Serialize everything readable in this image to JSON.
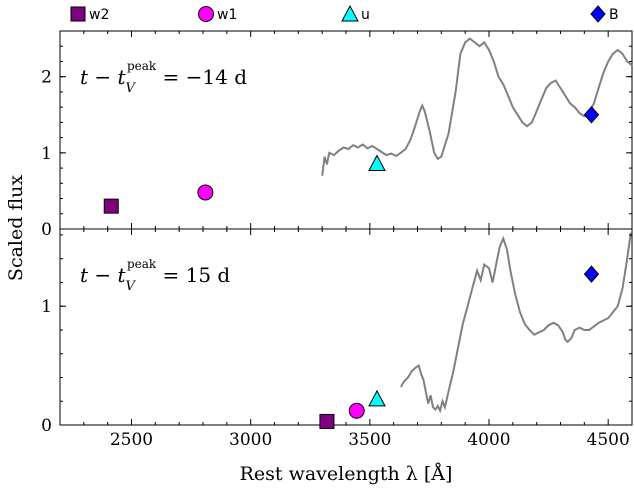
{
  "chart_data": {
    "type": "line",
    "xlabel": "Rest wavelength λ [Å]",
    "ylabel": "Scaled flux",
    "xlim": [
      2200,
      4600
    ],
    "x_ticks": [
      2500,
      3000,
      3500,
      4000,
      4500
    ],
    "legend_placement": "top, outside plot",
    "legend": [
      {
        "name": "w2",
        "marker": "square",
        "color": "#800080"
      },
      {
        "name": "w1",
        "marker": "circle",
        "color": "#ff00ff"
      },
      {
        "name": "u",
        "marker": "triangle",
        "color": "#00ffff"
      },
      {
        "name": "B",
        "marker": "diamond",
        "color": "#0000ff"
      }
    ],
    "spectrum_color": "#808080",
    "panels": [
      {
        "id": "top",
        "label_prefix": "t − t",
        "label_sub": "V",
        "label_sup": "peak",
        "label_value": " = −14 d",
        "ylim": [
          0,
          2.6
        ],
        "y_ticks": [
          0,
          1,
          2
        ],
        "photometry": [
          {
            "band": "w2",
            "x": 2415,
            "y": 0.3
          },
          {
            "band": "w1",
            "x": 2810,
            "y": 0.48
          },
          {
            "band": "u",
            "x": 3530,
            "y": 0.86
          },
          {
            "band": "B",
            "x": 4430,
            "y": 1.5
          }
        ],
        "spectrum": [
          [
            3300,
            0.7
          ],
          [
            3310,
            0.95
          ],
          [
            3320,
            0.85
          ],
          [
            3330,
            1.0
          ],
          [
            3350,
            0.97
          ],
          [
            3370,
            1.03
          ],
          [
            3390,
            1.07
          ],
          [
            3410,
            1.05
          ],
          [
            3430,
            1.1
          ],
          [
            3450,
            1.07
          ],
          [
            3470,
            1.11
          ],
          [
            3490,
            1.06
          ],
          [
            3510,
            1.09
          ],
          [
            3530,
            1.05
          ],
          [
            3550,
            1.01
          ],
          [
            3570,
            0.97
          ],
          [
            3590,
            0.99
          ],
          [
            3610,
            0.96
          ],
          [
            3630,
            1.0
          ],
          [
            3650,
            1.05
          ],
          [
            3670,
            1.17
          ],
          [
            3690,
            1.35
          ],
          [
            3710,
            1.55
          ],
          [
            3720,
            1.62
          ],
          [
            3730,
            1.55
          ],
          [
            3750,
            1.3
          ],
          [
            3770,
            1.0
          ],
          [
            3785,
            0.92
          ],
          [
            3800,
            0.95
          ],
          [
            3830,
            1.25
          ],
          [
            3860,
            1.8
          ],
          [
            3880,
            2.3
          ],
          [
            3900,
            2.45
          ],
          [
            3920,
            2.5
          ],
          [
            3940,
            2.45
          ],
          [
            3960,
            2.4
          ],
          [
            3980,
            2.45
          ],
          [
            4000,
            2.35
          ],
          [
            4020,
            2.2
          ],
          [
            4040,
            2.0
          ],
          [
            4060,
            1.9
          ],
          [
            4080,
            1.75
          ],
          [
            4100,
            1.6
          ],
          [
            4120,
            1.5
          ],
          [
            4140,
            1.4
          ],
          [
            4160,
            1.35
          ],
          [
            4180,
            1.4
          ],
          [
            4200,
            1.55
          ],
          [
            4220,
            1.7
          ],
          [
            4240,
            1.85
          ],
          [
            4260,
            1.92
          ],
          [
            4280,
            1.95
          ],
          [
            4300,
            1.85
          ],
          [
            4320,
            1.75
          ],
          [
            4340,
            1.65
          ],
          [
            4360,
            1.6
          ],
          [
            4380,
            1.52
          ],
          [
            4400,
            1.48
          ],
          [
            4420,
            1.52
          ],
          [
            4440,
            1.65
          ],
          [
            4460,
            1.85
          ],
          [
            4480,
            2.05
          ],
          [
            4500,
            2.2
          ],
          [
            4520,
            2.3
          ],
          [
            4540,
            2.35
          ],
          [
            4560,
            2.3
          ],
          [
            4580,
            2.2
          ],
          [
            4600,
            2.15
          ]
        ]
      },
      {
        "id": "bottom",
        "label_prefix": "t − t",
        "label_sub": "V",
        "label_sup": "peak",
        "label_value": " = 15 d",
        "ylim": [
          0,
          1.65
        ],
        "y_ticks": [
          0,
          1
        ],
        "photometry": [
          {
            "band": "w2",
            "x": 3320,
            "y": 0.03
          },
          {
            "band": "w1",
            "x": 3445,
            "y": 0.12
          },
          {
            "band": "u",
            "x": 3530,
            "y": 0.22
          },
          {
            "band": "B",
            "x": 4430,
            "y": 1.27
          }
        ],
        "spectrum": [
          [
            3630,
            0.32
          ],
          [
            3645,
            0.37
          ],
          [
            3660,
            0.4
          ],
          [
            3675,
            0.45
          ],
          [
            3690,
            0.48
          ],
          [
            3705,
            0.5
          ],
          [
            3715,
            0.43
          ],
          [
            3725,
            0.38
          ],
          [
            3735,
            0.28
          ],
          [
            3745,
            0.18
          ],
          [
            3755,
            0.25
          ],
          [
            3765,
            0.15
          ],
          [
            3775,
            0.13
          ],
          [
            3785,
            0.16
          ],
          [
            3795,
            0.12
          ],
          [
            3805,
            0.2
          ],
          [
            3815,
            0.15
          ],
          [
            3830,
            0.28
          ],
          [
            3850,
            0.45
          ],
          [
            3870,
            0.65
          ],
          [
            3890,
            0.85
          ],
          [
            3910,
            1.0
          ],
          [
            3930,
            1.15
          ],
          [
            3950,
            1.3
          ],
          [
            3965,
            1.22
          ],
          [
            3980,
            1.35
          ],
          [
            4000,
            1.32
          ],
          [
            4015,
            1.2
          ],
          [
            4030,
            1.35
          ],
          [
            4045,
            1.5
          ],
          [
            4060,
            1.57
          ],
          [
            4075,
            1.48
          ],
          [
            4090,
            1.3
          ],
          [
            4110,
            1.1
          ],
          [
            4130,
            0.95
          ],
          [
            4150,
            0.85
          ],
          [
            4170,
            0.8
          ],
          [
            4190,
            0.76
          ],
          [
            4210,
            0.78
          ],
          [
            4230,
            0.8
          ],
          [
            4250,
            0.84
          ],
          [
            4270,
            0.86
          ],
          [
            4290,
            0.84
          ],
          [
            4310,
            0.78
          ],
          [
            4320,
            0.72
          ],
          [
            4330,
            0.7
          ],
          [
            4345,
            0.73
          ],
          [
            4360,
            0.8
          ],
          [
            4380,
            0.82
          ],
          [
            4400,
            0.8
          ],
          [
            4420,
            0.8
          ],
          [
            4440,
            0.83
          ],
          [
            4460,
            0.86
          ],
          [
            4480,
            0.88
          ],
          [
            4500,
            0.9
          ],
          [
            4520,
            0.95
          ],
          [
            4540,
            1.0
          ],
          [
            4560,
            1.15
          ],
          [
            4580,
            1.4
          ],
          [
            4595,
            1.62
          ]
        ]
      }
    ]
  }
}
